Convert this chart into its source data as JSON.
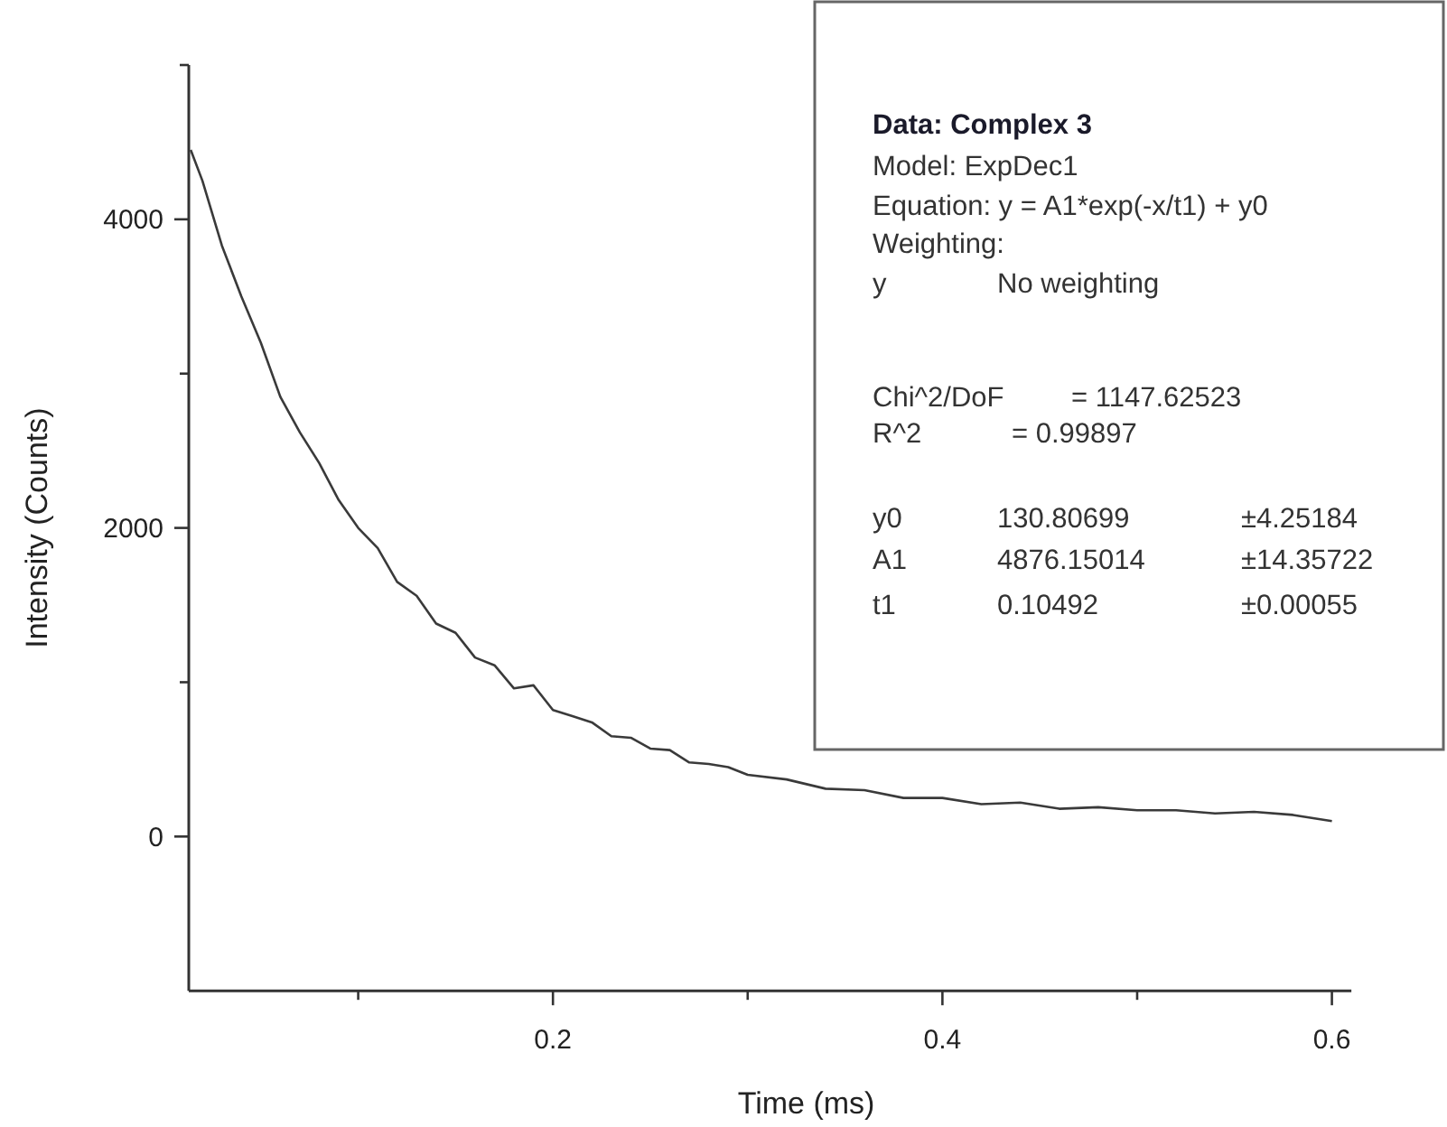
{
  "chart_data": {
    "type": "line",
    "xlabel": "Time (ms)",
    "ylabel": "Intensity (Counts)",
    "x": [
      0.014,
      0.02,
      0.03,
      0.04,
      0.05,
      0.06,
      0.07,
      0.08,
      0.09,
      0.1,
      0.11,
      0.12,
      0.13,
      0.14,
      0.15,
      0.16,
      0.17,
      0.18,
      0.19,
      0.2,
      0.21,
      0.22,
      0.23,
      0.24,
      0.25,
      0.26,
      0.27,
      0.28,
      0.29,
      0.3,
      0.32,
      0.34,
      0.36,
      0.38,
      0.4,
      0.42,
      0.44,
      0.46,
      0.48,
      0.5,
      0.52,
      0.54,
      0.56,
      0.58,
      0.6
    ],
    "series": [
      {
        "color": "#3a3a3a",
        "values": [
          4450,
          4250,
          3830,
          3500,
          3200,
          2850,
          2620,
          2420,
          2180,
          2000,
          1870,
          1650,
          1560,
          1380,
          1320,
          1160,
          1110,
          960,
          980,
          820,
          780,
          740,
          650,
          640,
          570,
          560,
          480,
          470,
          450,
          400,
          370,
          310,
          300,
          250,
          250,
          210,
          220,
          180,
          190,
          170,
          170,
          150,
          160,
          140,
          100
        ]
      }
    ],
    "xlim": [
      0.013,
      0.61
    ],
    "ylim": [
      -1000,
      5000
    ],
    "xticks": [
      {
        "value": 0.1,
        "label": null
      },
      0.2,
      {
        "value": 0.3,
        "label": null
      },
      0.4,
      {
        "value": 0.5,
        "label": null
      },
      0.6
    ],
    "yticks": [
      {
        "value": 1000,
        "label": null
      },
      0,
      2000,
      {
        "value": 3000,
        "label": null
      },
      4000,
      {
        "value": 5000,
        "label": null
      }
    ],
    "grid": false,
    "marker": "none",
    "line_style": "solid",
    "annotations": [
      "Data: Complex 3",
      "Model: ExpDec1",
      "Equation: y = A1*exp(-x/t1) + y0",
      "Weighting:",
      "y",
      "No weighting",
      "Chi^2/DoF",
      "= 1147.62523",
      "R^2",
      "= 0.99897",
      "y0",
      "130.80699",
      "±4.25184",
      "A1",
      "4876.15014",
      "±14.35722",
      "t1",
      "0.10492",
      "±0.00055"
    ]
  }
}
